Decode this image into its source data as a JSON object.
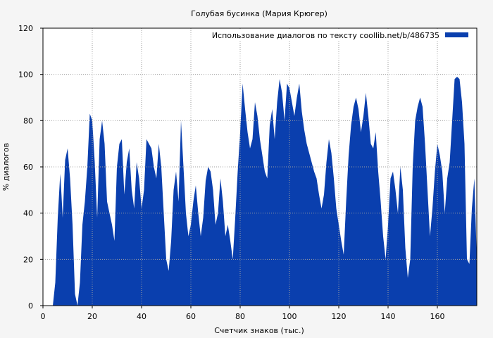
{
  "chart_data": {
    "type": "area",
    "title": "Голубая бусинка (Мария Крюгер)",
    "xlabel": "Счетчик знаков (тыс.)",
    "ylabel": "% диалогов",
    "legend": {
      "label": "Использование диалогов по тексту  coollib.net/b/486735",
      "position": "top-right"
    },
    "xlim": [
      0,
      176
    ],
    "ylim": [
      0,
      120
    ],
    "x_ticks": [
      0,
      20,
      40,
      60,
      80,
      100,
      120,
      140,
      160
    ],
    "y_ticks": [
      0,
      20,
      40,
      60,
      80,
      100,
      120
    ],
    "grid": true,
    "colors": {
      "series": "#0a3fae",
      "background": "#f5f5f5",
      "grid": "#a0a0a0"
    },
    "series": [
      {
        "points": [
          [
            4,
            0
          ],
          [
            5,
            10
          ],
          [
            6,
            38
          ],
          [
            7,
            57
          ],
          [
            7.5,
            48
          ],
          [
            8,
            38
          ],
          [
            9,
            63
          ],
          [
            10,
            68
          ],
          [
            11,
            55
          ],
          [
            12,
            35
          ],
          [
            13,
            5
          ],
          [
            14,
            0
          ],
          [
            15,
            10
          ],
          [
            16,
            35
          ],
          [
            17,
            45
          ],
          [
            18,
            60
          ],
          [
            19,
            83
          ],
          [
            20,
            80
          ],
          [
            21,
            62
          ],
          [
            22,
            38
          ],
          [
            23,
            72
          ],
          [
            24,
            80
          ],
          [
            25,
            70
          ],
          [
            26,
            45
          ],
          [
            27,
            40
          ],
          [
            28,
            35
          ],
          [
            29,
            28
          ],
          [
            30,
            60
          ],
          [
            31,
            70
          ],
          [
            32,
            72
          ],
          [
            33,
            48
          ],
          [
            34,
            62
          ],
          [
            35,
            68
          ],
          [
            36,
            50
          ],
          [
            37,
            42
          ],
          [
            38,
            62
          ],
          [
            39,
            55
          ],
          [
            40,
            42
          ],
          [
            41,
            50
          ],
          [
            42,
            72
          ],
          [
            43,
            70
          ],
          [
            44,
            68
          ],
          [
            45,
            60
          ],
          [
            46,
            55
          ],
          [
            47,
            70
          ],
          [
            48,
            60
          ],
          [
            49,
            40
          ],
          [
            50,
            20
          ],
          [
            51,
            15
          ],
          [
            52,
            28
          ],
          [
            53,
            50
          ],
          [
            54,
            58
          ],
          [
            55,
            45
          ],
          [
            56,
            80
          ],
          [
            57,
            60
          ],
          [
            58,
            40
          ],
          [
            59,
            30
          ],
          [
            60,
            35
          ],
          [
            61,
            45
          ],
          [
            62,
            52
          ],
          [
            63,
            40
          ],
          [
            64,
            30
          ],
          [
            65,
            38
          ],
          [
            66,
            54
          ],
          [
            67,
            60
          ],
          [
            68,
            58
          ],
          [
            69,
            50
          ],
          [
            70,
            35
          ],
          [
            71,
            40
          ],
          [
            72,
            55
          ],
          [
            73,
            45
          ],
          [
            74,
            30
          ],
          [
            75,
            35
          ],
          [
            76,
            28
          ],
          [
            77,
            20
          ],
          [
            78,
            38
          ],
          [
            79,
            58
          ],
          [
            80,
            75
          ],
          [
            81,
            96
          ],
          [
            82,
            85
          ],
          [
            83,
            75
          ],
          [
            84,
            68
          ],
          [
            85,
            72
          ],
          [
            86,
            88
          ],
          [
            87,
            82
          ],
          [
            88,
            72
          ],
          [
            89,
            65
          ],
          [
            90,
            58
          ],
          [
            91,
            55
          ],
          [
            92,
            78
          ],
          [
            93,
            85
          ],
          [
            94,
            72
          ],
          [
            95,
            88
          ],
          [
            96,
            98
          ],
          [
            97,
            92
          ],
          [
            98,
            80
          ],
          [
            99,
            96
          ],
          [
            100,
            94
          ],
          [
            101,
            88
          ],
          [
            102,
            82
          ],
          [
            103,
            90
          ],
          [
            104,
            96
          ],
          [
            105,
            84
          ],
          [
            106,
            76
          ],
          [
            107,
            70
          ],
          [
            108,
            66
          ],
          [
            109,
            62
          ],
          [
            110,
            58
          ],
          [
            111,
            55
          ],
          [
            112,
            48
          ],
          [
            113,
            42
          ],
          [
            114,
            48
          ],
          [
            115,
            62
          ],
          [
            116,
            72
          ],
          [
            117,
            66
          ],
          [
            118,
            55
          ],
          [
            119,
            42
          ],
          [
            120,
            35
          ],
          [
            121,
            28
          ],
          [
            122,
            22
          ],
          [
            123,
            45
          ],
          [
            124,
            65
          ],
          [
            125,
            78
          ],
          [
            126,
            86
          ],
          [
            127,
            90
          ],
          [
            128,
            85
          ],
          [
            129,
            75
          ],
          [
            130,
            82
          ],
          [
            131,
            92
          ],
          [
            132,
            82
          ],
          [
            133,
            70
          ],
          [
            134,
            68
          ],
          [
            135,
            75
          ],
          [
            136,
            58
          ],
          [
            137,
            45
          ],
          [
            138,
            30
          ],
          [
            139,
            20
          ],
          [
            140,
            35
          ],
          [
            141,
            55
          ],
          [
            142,
            58
          ],
          [
            143,
            50
          ],
          [
            144,
            40
          ],
          [
            145,
            60
          ],
          [
            146,
            50
          ],
          [
            147,
            25
          ],
          [
            148,
            12
          ],
          [
            149,
            20
          ],
          [
            150,
            60
          ],
          [
            151,
            80
          ],
          [
            152,
            86
          ],
          [
            153,
            90
          ],
          [
            154,
            86
          ],
          [
            155,
            70
          ],
          [
            156,
            50
          ],
          [
            157,
            30
          ],
          [
            158,
            42
          ],
          [
            159,
            58
          ],
          [
            160,
            70
          ],
          [
            161,
            65
          ],
          [
            162,
            58
          ],
          [
            163,
            40
          ],
          [
            164,
            55
          ],
          [
            165,
            62
          ],
          [
            166,
            80
          ],
          [
            167,
            98
          ],
          [
            168,
            99
          ],
          [
            169,
            98
          ],
          [
            170,
            88
          ],
          [
            171,
            70
          ],
          [
            172,
            20
          ],
          [
            173,
            18
          ],
          [
            174,
            42
          ],
          [
            175,
            55
          ],
          [
            176,
            20
          ]
        ]
      }
    ]
  }
}
